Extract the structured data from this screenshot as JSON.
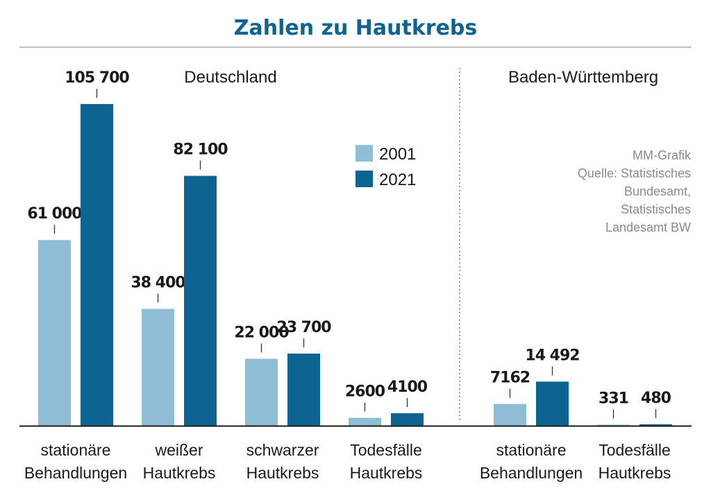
{
  "chart_data": {
    "type": "bar",
    "title": "Zahlen zu Hautkrebs",
    "colors": {
      "title": "#0e6491",
      "s2001": "#8fbdd6",
      "s2021": "#0e6491",
      "axis": "#1a1a1a"
    },
    "ylim": [
      0,
      105700
    ],
    "legend": {
      "placement": "top-right of Deutschland panel",
      "entries": [
        "2001",
        "2021"
      ]
    },
    "groups": [
      {
        "name": "Deutschland",
        "categories": [
          {
            "line1": "stationäre",
            "line2": "Behandlungen",
            "v2001": 61000,
            "v2021": 105700,
            "l2001": "61 000",
            "l2021": "105 700"
          },
          {
            "line1": "weißer",
            "line2": "Hautkrebs",
            "v2001": 38400,
            "v2021": 82100,
            "l2001": "38 400",
            "l2021": "82 100"
          },
          {
            "line1": "schwarzer",
            "line2": "Hautkrebs",
            "v2001": 22000,
            "v2021": 23700,
            "l2001": "22 000",
            "l2021": "23 700"
          },
          {
            "line1": "Todesfälle",
            "line2": "Hautkrebs",
            "v2001": 2600,
            "v2021": 4100,
            "l2001": "2600",
            "l2021": "4100"
          }
        ]
      },
      {
        "name": "Baden-Württemberg",
        "categories": [
          {
            "line1": "stationäre",
            "line2": "Behandlungen",
            "v2001": 7162,
            "v2021": 14492,
            "l2001": "7162",
            "l2021": "14 492"
          },
          {
            "line1": "Todesfälle",
            "line2": "Hautkrebs",
            "v2001": 331,
            "v2021": 480,
            "l2001": "331",
            "l2021": "480"
          }
        ]
      }
    ],
    "source_lines": [
      "MM-Grafik",
      "Quelle: Statistisches",
      "Bundesamt,",
      "Statistisches",
      "Landesamt BW"
    ]
  }
}
